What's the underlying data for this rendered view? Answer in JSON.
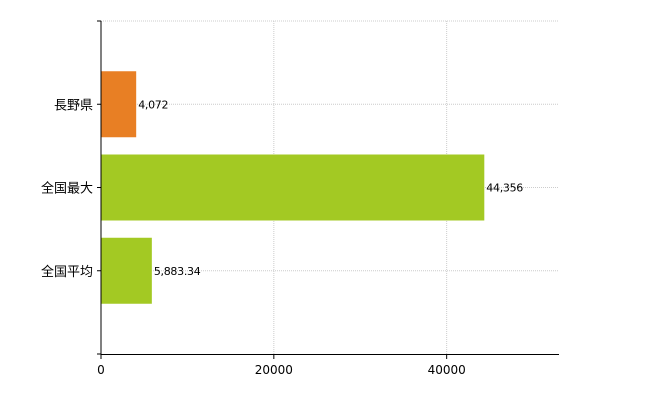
{
  "chart_data": {
    "type": "bar",
    "orientation": "horizontal",
    "categories": [
      "長野県",
      "全国最大",
      "全国平均"
    ],
    "values": [
      4072,
      44356,
      5883.34
    ],
    "value_labels": [
      "4,072",
      "44,356",
      "5,883.34"
    ],
    "bar_colors": [
      "#e87f24",
      "#a3c923",
      "#a3c923"
    ],
    "title": "",
    "xlabel": "",
    "ylabel": "",
    "xlim": [
      0,
      53000
    ],
    "x_ticks": [
      0,
      20000,
      40000
    ],
    "x_tick_labels": [
      "0",
      "20000",
      "40000"
    ],
    "grid": true
  }
}
